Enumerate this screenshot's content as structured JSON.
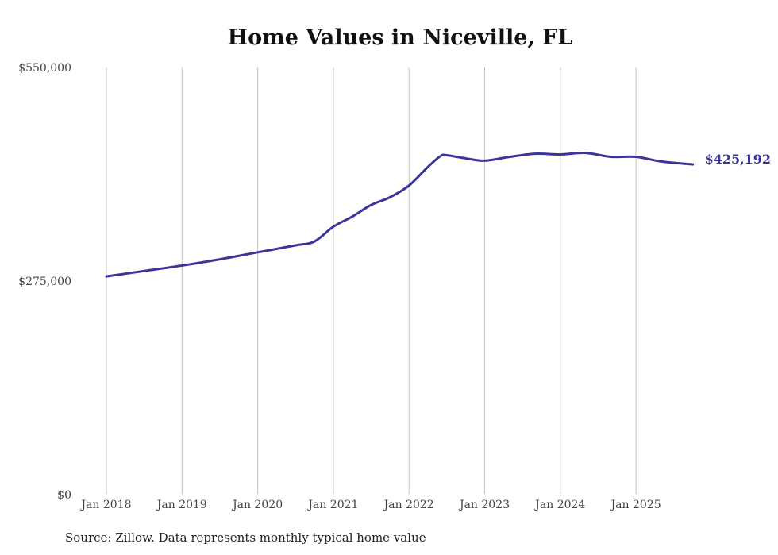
{
  "chart_data": {
    "type": "line",
    "title": "Home Values in Niceville, FL",
    "xlabel": "",
    "ylabel": "",
    "ylim": [
      0,
      550000
    ],
    "y_ticks": [
      {
        "value": 0,
        "label": "$0"
      },
      {
        "value": 275000,
        "label": "$275,000"
      },
      {
        "value": 550000,
        "label": "$550,000"
      }
    ],
    "x_ticks": [
      {
        "value": "2018-01",
        "label": "Jan 2018"
      },
      {
        "value": "2019-01",
        "label": "Jan 2019"
      },
      {
        "value": "2020-01",
        "label": "Jan 2020"
      },
      {
        "value": "2021-01",
        "label": "Jan 2021"
      },
      {
        "value": "2022-01",
        "label": "Jan 2022"
      },
      {
        "value": "2023-01",
        "label": "Jan 2023"
      },
      {
        "value": "2024-01",
        "label": "Jan 2024"
      },
      {
        "value": "2025-01",
        "label": "Jan 2025"
      }
    ],
    "grid": "vertical at x ticks",
    "series": [
      {
        "name": "Typical home value",
        "color": "#3a3596",
        "x": [
          "2018-01",
          "2018-07",
          "2019-01",
          "2019-07",
          "2020-01",
          "2020-07",
          "2020-10",
          "2021-01",
          "2021-04",
          "2021-07",
          "2021-10",
          "2022-01",
          "2022-04",
          "2022-06",
          "2022-07",
          "2022-10",
          "2023-01",
          "2023-05",
          "2023-09",
          "2024-01",
          "2024-05",
          "2024-09",
          "2025-01",
          "2025-05",
          "2025-10"
        ],
        "values": [
          281000,
          288000,
          295000,
          303000,
          312000,
          321000,
          326000,
          345000,
          358000,
          373000,
          383000,
          398000,
          422000,
          436000,
          437000,
          433000,
          430000,
          435000,
          439000,
          438000,
          440000,
          435000,
          435000,
          429000,
          425192
        ]
      }
    ],
    "end_label": "$425,192"
  },
  "source": "Source: Zillow. Data represents monthly typical home value"
}
